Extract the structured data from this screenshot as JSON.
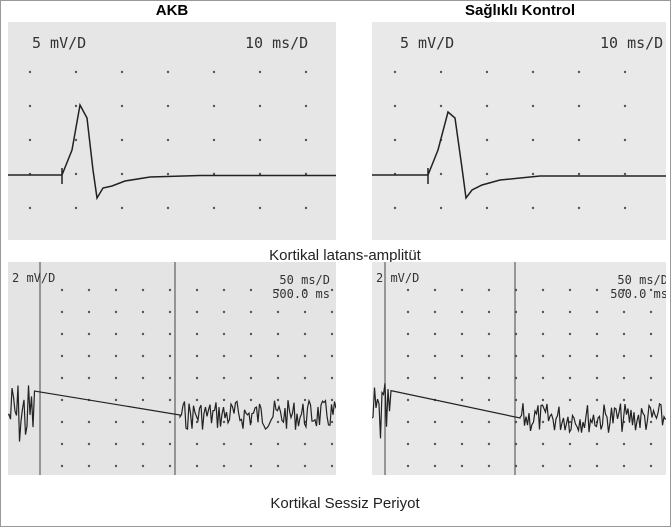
{
  "headers": [
    "AKB",
    "Sağlıklı Kontrol"
  ],
  "top_panels": [
    {
      "amplitude": "5 mV/D",
      "time": "10 ms/D"
    },
    {
      "amplitude": "5 mV/D",
      "time": "10 ms/D"
    }
  ],
  "top_caption": "Kortikal latans-amplitüt",
  "bottom_panels": [
    {
      "amplitude": "2 mV/D",
      "time": "50 ms/D",
      "sweep": "500.0 ms"
    },
    {
      "amplitude": "2 mV/D",
      "time": "50 ms/D",
      "sweep": "500.0 ms"
    }
  ],
  "bottom_caption": "Kortikal Sessiz Periyot"
}
